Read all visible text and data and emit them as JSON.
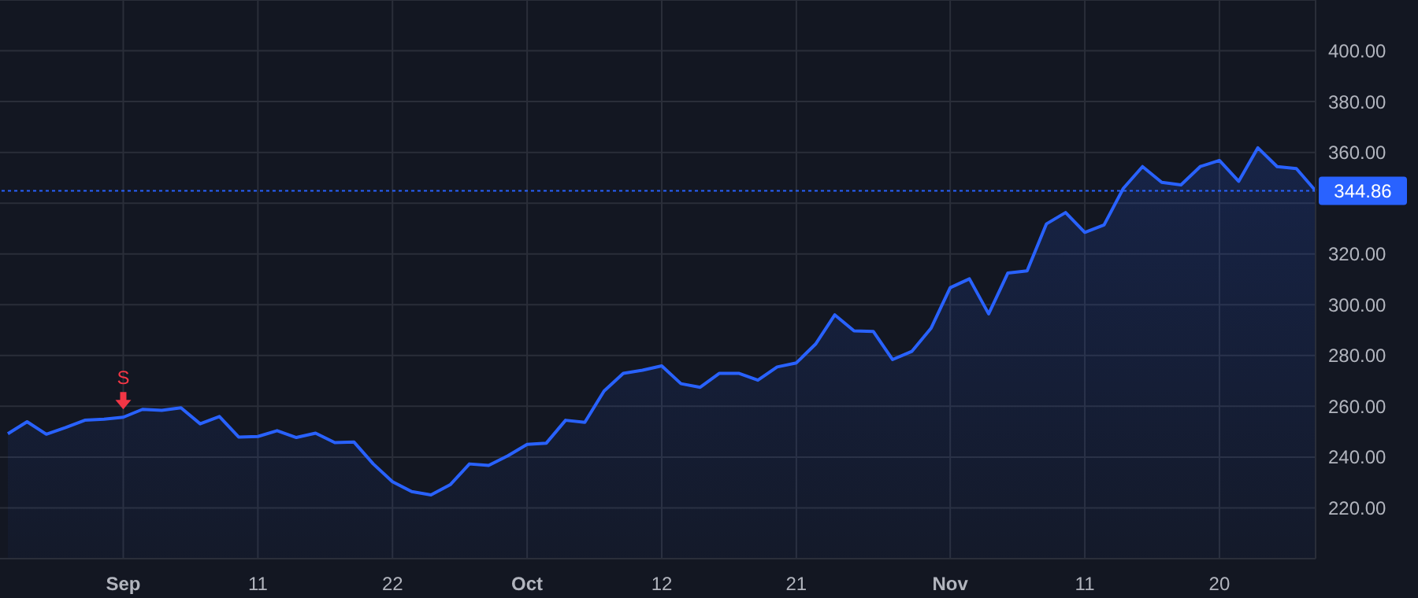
{
  "chart_data": {
    "type": "area",
    "categories": [
      null,
      null,
      null,
      null,
      null,
      null,
      "Sep",
      null,
      null,
      null,
      null,
      null,
      null,
      "11",
      null,
      null,
      null,
      null,
      null,
      null,
      "22",
      null,
      null,
      null,
      null,
      null,
      null,
      "Oct",
      null,
      null,
      null,
      null,
      null,
      null,
      "12",
      null,
      null,
      null,
      null,
      null,
      null,
      "21",
      null,
      null,
      null,
      null,
      null,
      null,
      null,
      "Nov",
      null,
      null,
      null,
      null,
      null,
      null,
      "11",
      null,
      null,
      null,
      null,
      null,
      null,
      "20",
      null,
      null,
      null,
      null,
      null
    ],
    "series": [
      {
        "color": "#2962ff",
        "values": [
          249.2,
          253.9,
          249.0,
          251.6,
          254.5,
          254.9,
          255.7,
          258.8,
          258.4,
          259.4,
          253.1,
          256.0,
          247.9,
          248.1,
          250.4,
          247.7,
          249.4,
          245.7,
          245.9,
          237.3,
          230.3,
          226.4,
          225.1,
          229.1,
          237.3,
          236.7,
          240.5,
          245.0,
          245.5,
          254.5,
          253.7,
          266.0,
          273.0,
          274.2,
          275.9,
          268.9,
          267.5,
          273.0,
          273.0,
          270.3,
          275.5,
          277.1,
          284.5,
          296.0,
          289.7,
          289.5,
          278.4,
          281.6,
          290.7,
          306.7,
          310.2,
          296.4,
          312.5,
          313.3,
          331.8,
          336.3,
          328.5,
          331.4,
          345.8,
          354.4,
          348.2,
          347.2,
          354.4,
          356.8,
          348.6,
          361.8,
          354.4,
          353.6,
          344.86
        ]
      }
    ],
    "ylim": [
      200,
      420
    ],
    "yticks": [
      {
        "value": 220,
        "label": "220.00"
      },
      {
        "value": 240,
        "label": "240.00"
      },
      {
        "value": 260,
        "label": "260.00"
      },
      {
        "value": 280,
        "label": "280.00"
      },
      {
        "value": 300,
        "label": "300.00"
      },
      {
        "value": 320,
        "label": "320.00"
      },
      {
        "value": 340,
        "label": null
      },
      {
        "value": 360,
        "label": "360.00"
      },
      {
        "value": 380,
        "label": "380.00"
      },
      {
        "value": 400,
        "label": "400.00"
      }
    ],
    "ref_lines": [
      {
        "axis": "y",
        "value": 344.86,
        "label": "344.86",
        "color": "#2962ff",
        "line_style": "dotted"
      }
    ],
    "annotations": [
      {
        "text": "S",
        "x": "Sep",
        "y": 255.7
      }
    ],
    "grid": true,
    "marker": "none",
    "line_style": "solid"
  }
}
